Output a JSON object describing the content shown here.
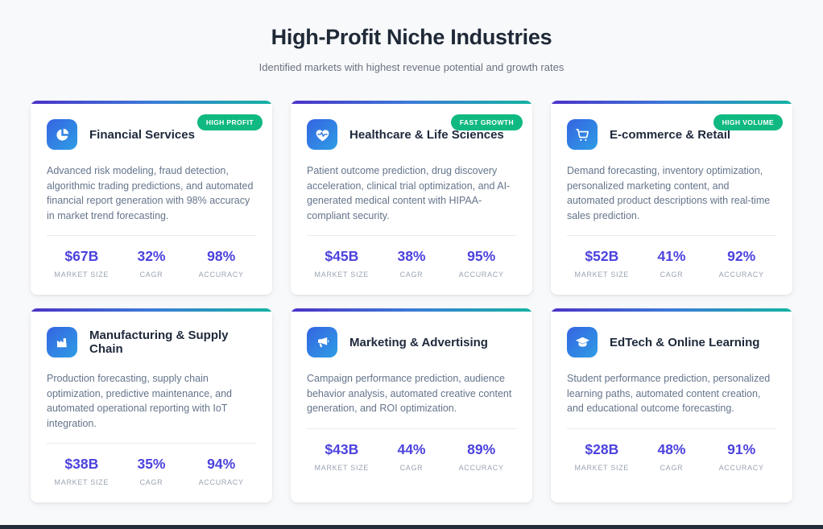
{
  "header": {
    "title": "High-Profit Niche Industries",
    "subtitle": "Identified markets with highest revenue potential and growth rates"
  },
  "colors": {
    "card_top_gradient": [
      "#4b32c8",
      "#3b7bd8",
      "#14b3a2"
    ],
    "icon_bg_gradient": [
      "#3564e2",
      "#2e9de4"
    ],
    "badge_bg": "#10b981",
    "stat_value": "#4c42dd",
    "bottom_strip": "#232d39"
  },
  "cards": [
    {
      "title": "Financial Services",
      "icon": "pie-chart-icon",
      "badge": "HIGH PROFIT",
      "description": "Advanced risk modeling, fraud detection, algorithmic trading predictions, and automated financial report generation with 98% accuracy in market trend forecasting.",
      "stats": [
        {
          "value": "$67B",
          "label": "MARKET SIZE"
        },
        {
          "value": "32%",
          "label": "CAGR"
        },
        {
          "value": "98%",
          "label": "ACCURACY"
        }
      ]
    },
    {
      "title": "Healthcare & Life Sciences",
      "icon": "heart-pulse-icon",
      "badge": "FAST GROWTH",
      "description": "Patient outcome prediction, drug discovery acceleration, clinical trial optimization, and AI-generated medical content with HIPAA-compliant security.",
      "stats": [
        {
          "value": "$45B",
          "label": "MARKET SIZE"
        },
        {
          "value": "38%",
          "label": "CAGR"
        },
        {
          "value": "95%",
          "label": "ACCURACY"
        }
      ]
    },
    {
      "title": "E-commerce & Retail",
      "icon": "shopping-cart-icon",
      "badge": "HIGH VOLUME",
      "description": "Demand forecasting, inventory optimization, personalized marketing content, and automated product descriptions with real-time sales prediction.",
      "stats": [
        {
          "value": "$52B",
          "label": "MARKET SIZE"
        },
        {
          "value": "41%",
          "label": "CAGR"
        },
        {
          "value": "92%",
          "label": "ACCURACY"
        }
      ]
    },
    {
      "title": "Manufacturing & Supply Chain",
      "icon": "factory-icon",
      "badge": "",
      "description": "Production forecasting, supply chain optimization, predictive maintenance, and automated operational reporting with IoT integration.",
      "stats": [
        {
          "value": "$38B",
          "label": "MARKET SIZE"
        },
        {
          "value": "35%",
          "label": "CAGR"
        },
        {
          "value": "94%",
          "label": "ACCURACY"
        }
      ]
    },
    {
      "title": "Marketing & Advertising",
      "icon": "megaphone-icon",
      "badge": "",
      "description": "Campaign performance prediction, audience behavior analysis, automated creative content generation, and ROI optimization.",
      "stats": [
        {
          "value": "$43B",
          "label": "MARKET SIZE"
        },
        {
          "value": "44%",
          "label": "CAGR"
        },
        {
          "value": "89%",
          "label": "ACCURACY"
        }
      ]
    },
    {
      "title": "EdTech & Online Learning",
      "icon": "graduation-cap-icon",
      "badge": "",
      "description": "Student performance prediction, personalized learning paths, automated content creation, and educational outcome forecasting.",
      "stats": [
        {
          "value": "$28B",
          "label": "MARKET SIZE"
        },
        {
          "value": "48%",
          "label": "CAGR"
        },
        {
          "value": "91%",
          "label": "ACCURACY"
        }
      ]
    }
  ]
}
